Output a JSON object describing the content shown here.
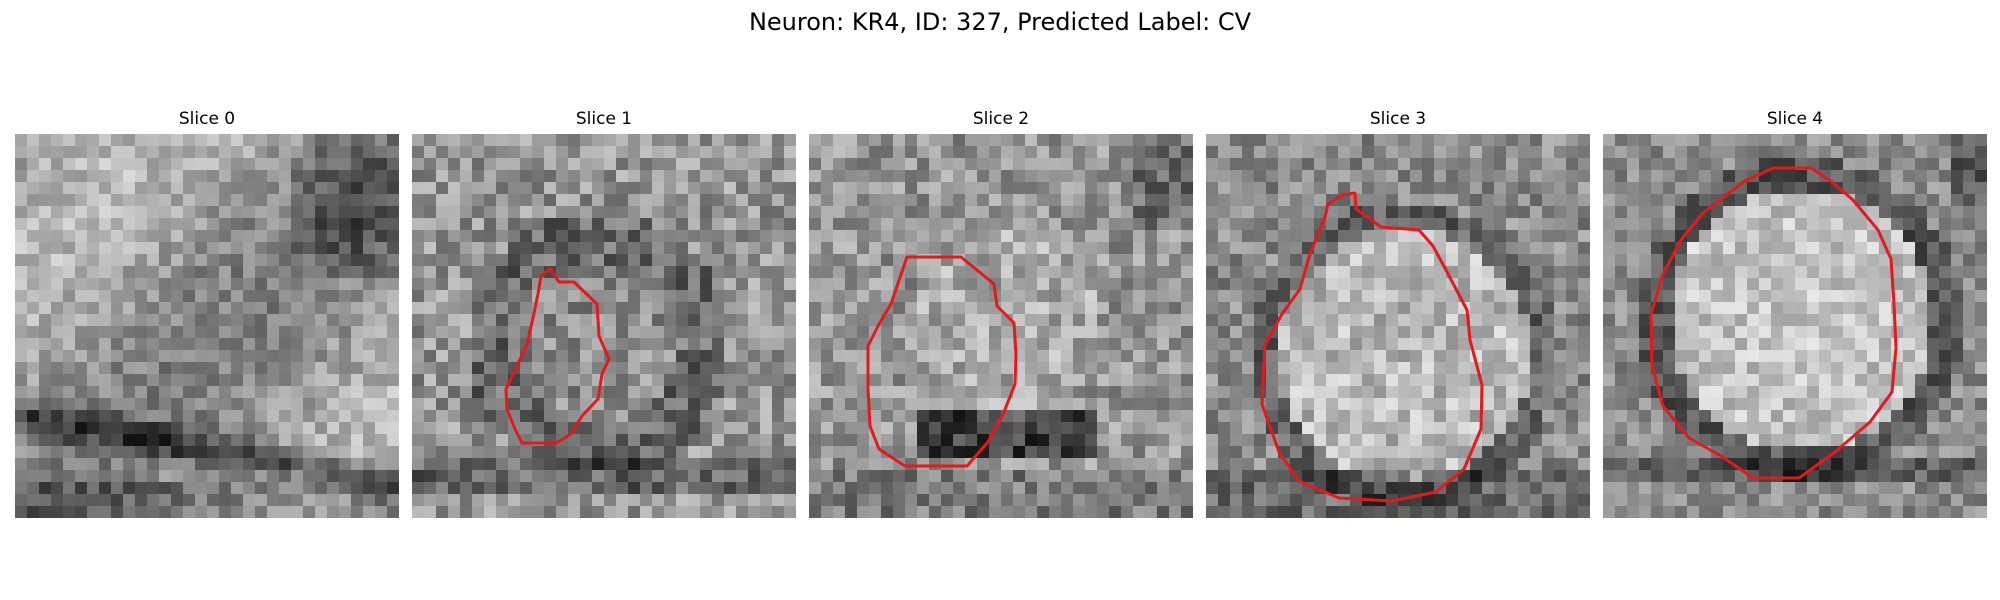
{
  "figure": {
    "title": "Neuron: KR4, ID: 327, Predicted Label: CV"
  },
  "colors": {
    "contour": "#e31a1c",
    "background": "#ffffff"
  },
  "panels": [
    {
      "title": "Slice 0",
      "has_contour": false,
      "pattern": "slice0"
    },
    {
      "title": "Slice 1",
      "has_contour": true,
      "pattern": "slice1"
    },
    {
      "title": "Slice 2",
      "has_contour": true,
      "pattern": "slice2"
    },
    {
      "title": "Slice 3",
      "has_contour": true,
      "pattern": "slice3"
    },
    {
      "title": "Slice 4",
      "has_contour": true,
      "pattern": "slice4"
    }
  ]
}
